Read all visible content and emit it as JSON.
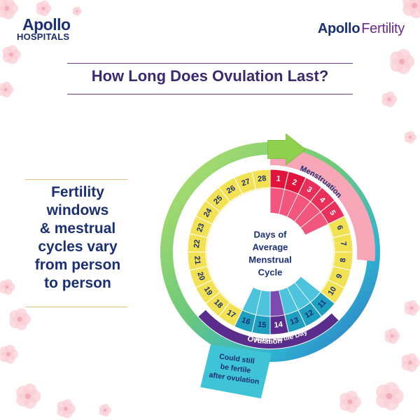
{
  "header": {
    "left_logo_name": "Apollo",
    "left_logo_sub": "HOSPITALS",
    "right_logo_name": "Apollo",
    "right_logo_sub": "Fertility"
  },
  "title": "How Long Does Ovulation Last?",
  "side_text": [
    "Fertility",
    "windows",
    "& mestrual",
    "cycles vary",
    "from person",
    "to person"
  ],
  "wheel": {
    "center": [
      "Days of",
      "Average",
      "Menstrual",
      "Cycle"
    ],
    "days": [
      1,
      2,
      3,
      4,
      5,
      6,
      7,
      8,
      9,
      10,
      11,
      12,
      13,
      14,
      15,
      16,
      17,
      18,
      19,
      20,
      21,
      22,
      23,
      24,
      25,
      26,
      27,
      28
    ],
    "labels": {
      "menstruation": "Menstruation",
      "most_fertile": "Most Fertile Day",
      "ovulation": "Ovulation"
    },
    "note": [
      "Could still",
      "be fertile",
      "after ovulation"
    ],
    "colors": {
      "menstruation": "#e0143c",
      "menstruation_light": "#f7a6b8",
      "yellow": "#f0e14a",
      "light_yellow": "#f7f0a6",
      "teal": "#34a8c4",
      "purple": "#5a2d8c",
      "green": "#8fd14f",
      "navy": "#1b2f73"
    }
  }
}
